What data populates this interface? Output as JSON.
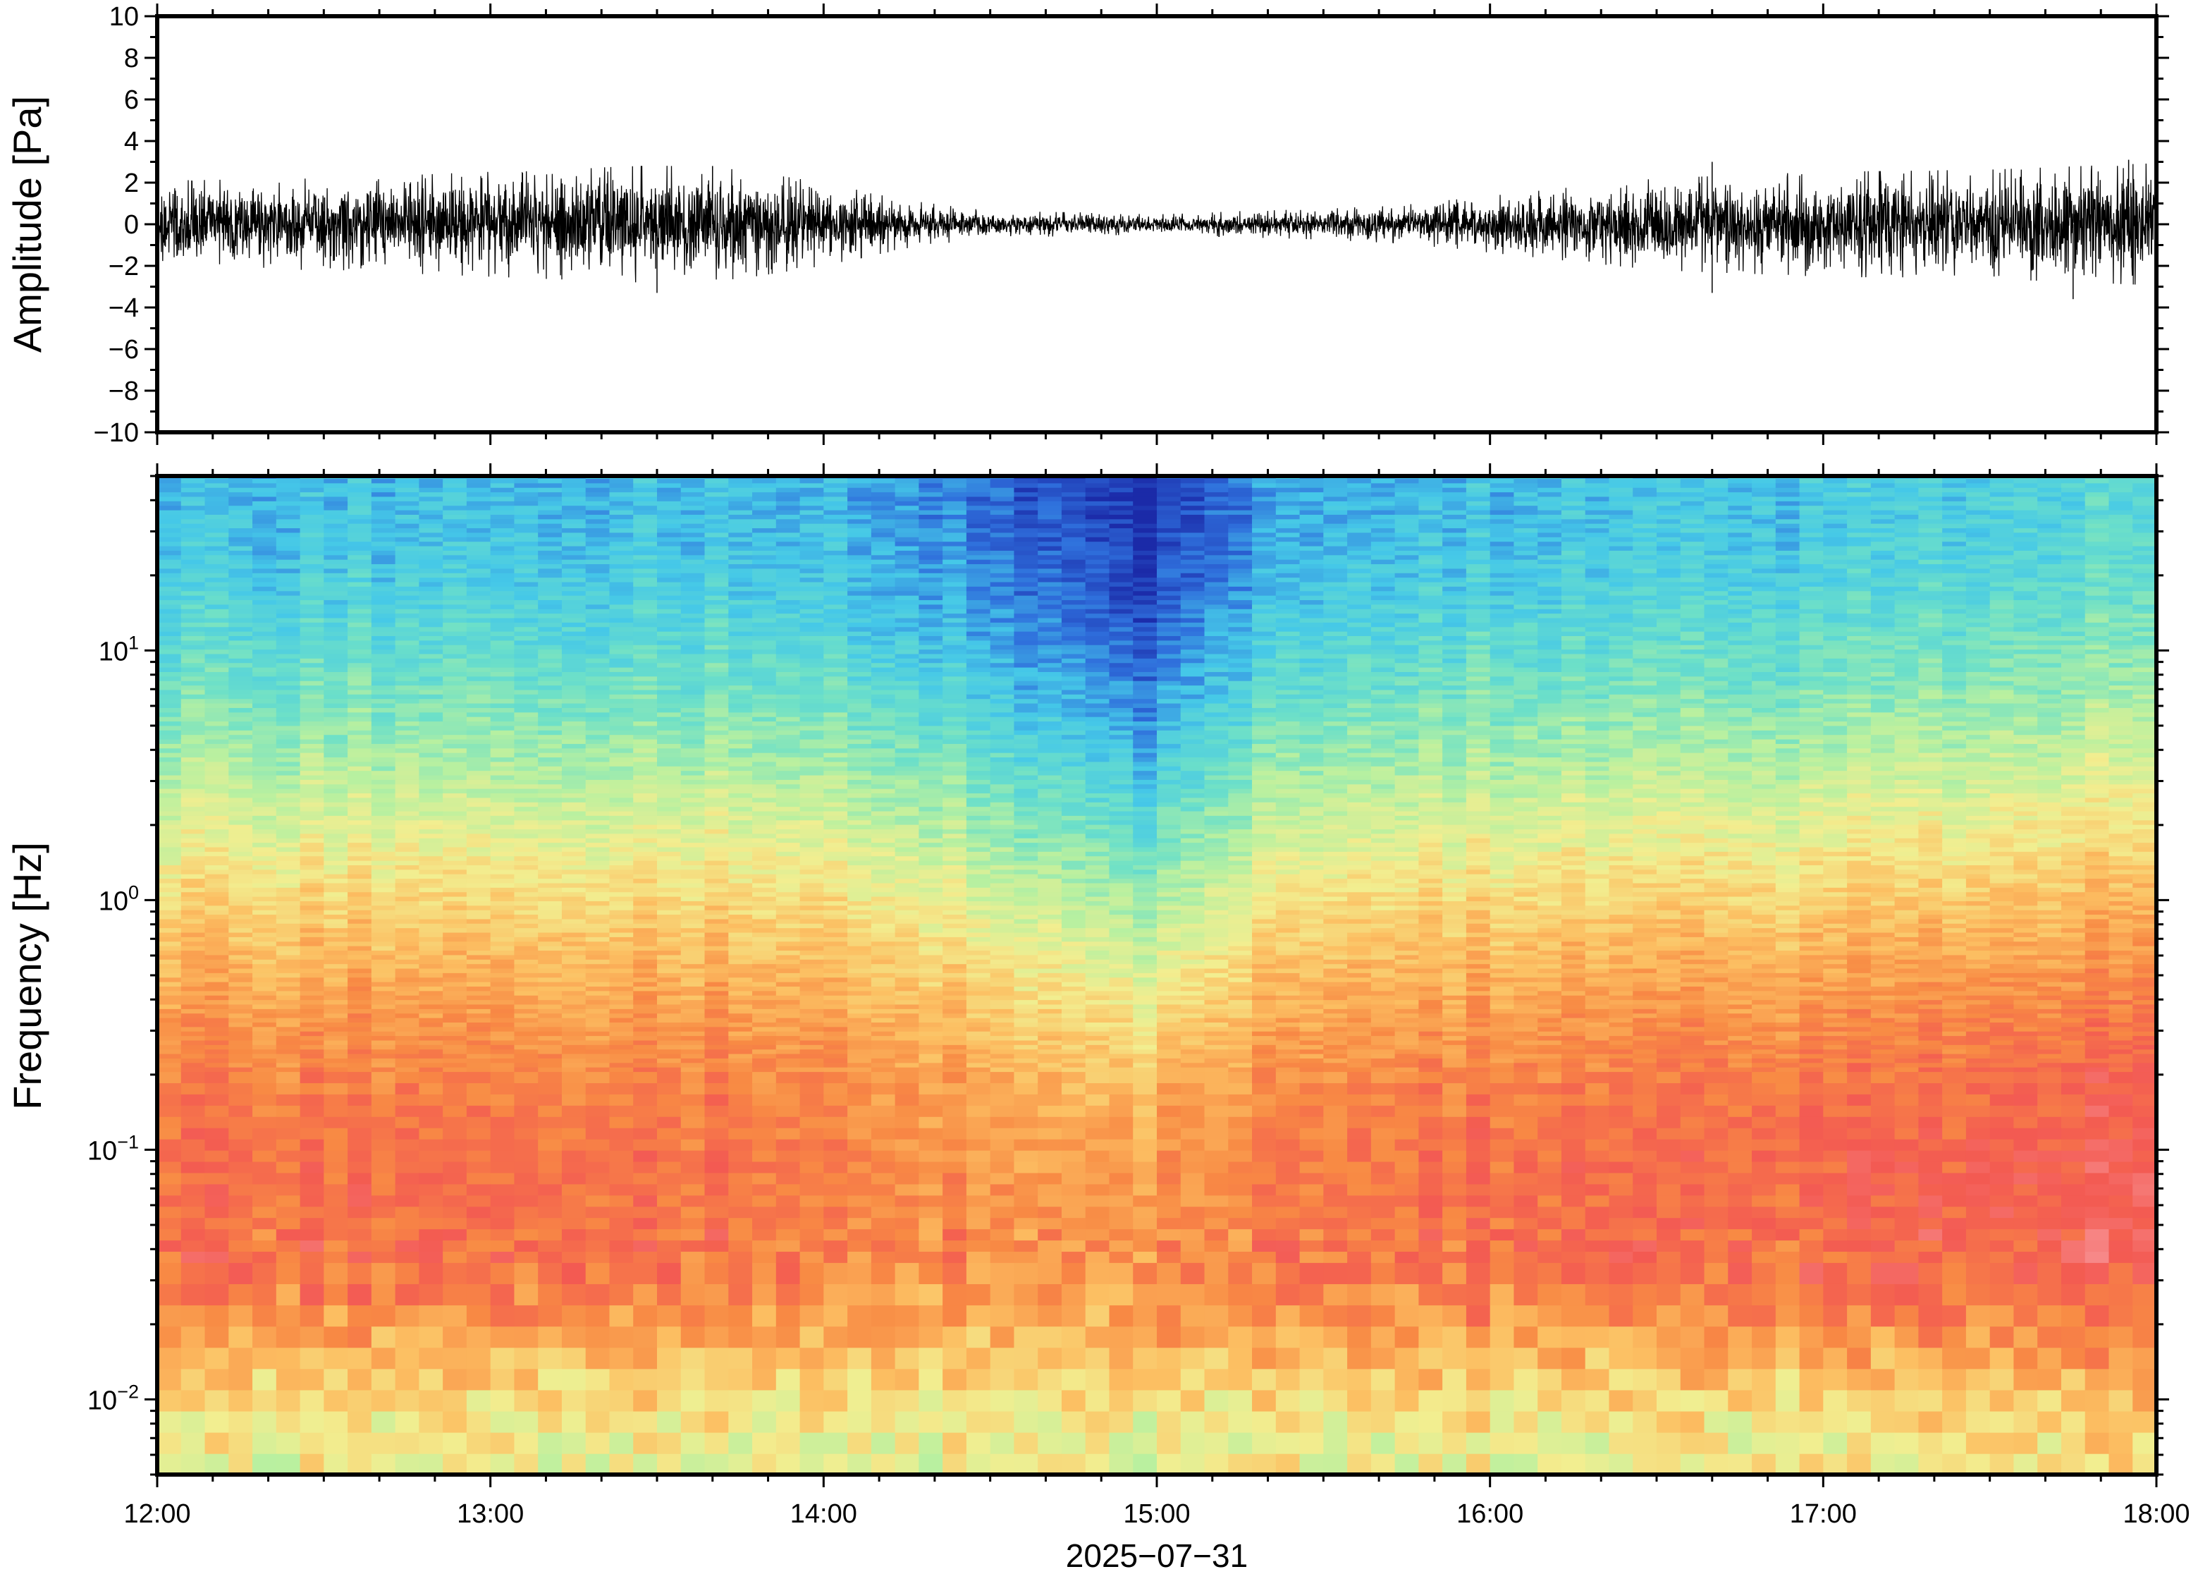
{
  "chart_data": [
    {
      "type": "line",
      "title": "",
      "ylabel": "Amplitude [Pa]",
      "ylim": [
        -10,
        10
      ],
      "yticks": [
        {
          "value": 10,
          "label": "10"
        },
        {
          "value": 8,
          "label": "8"
        },
        {
          "value": 6,
          "label": "6"
        },
        {
          "value": 4,
          "label": "4"
        },
        {
          "value": 2,
          "label": "2"
        },
        {
          "value": 0,
          "label": "0"
        },
        {
          "value": -2,
          "label": "−2"
        },
        {
          "value": -4,
          "label": "−4"
        },
        {
          "value": -6,
          "label": "−6"
        },
        {
          "value": -8,
          "label": "−8"
        },
        {
          "value": -10,
          "label": "−10"
        }
      ],
      "xlim": [
        "12:00",
        "18:00"
      ],
      "envelope": {
        "x": [
          "12:00",
          "12:30",
          "13:00",
          "13:30",
          "13:45",
          "14:00",
          "14:15",
          "14:30",
          "14:45",
          "15:00",
          "15:15",
          "15:30",
          "15:45",
          "16:00",
          "16:30",
          "17:00",
          "17:30",
          "18:00"
        ],
        "amplitude": [
          2.0,
          2.1,
          2.4,
          2.7,
          2.5,
          1.9,
          1.1,
          0.6,
          0.55,
          0.45,
          0.6,
          0.7,
          0.9,
          1.3,
          2.1,
          2.4,
          2.5,
          2.8
        ]
      },
      "peaks": [
        {
          "x": "13:30",
          "y": -3.3
        },
        {
          "x": "13:40",
          "y": 2.8
        },
        {
          "x": "16:40",
          "y": 3.0
        },
        {
          "x": "16:40",
          "y": -3.3
        },
        {
          "x": "17:45",
          "y": -3.6
        },
        {
          "x": "17:55",
          "y": 3.1
        }
      ]
    },
    {
      "type": "heatmap",
      "title": "",
      "ylabel": "Frequency [Hz]",
      "xlabel": "2025−07−31",
      "yscale": "log",
      "ylim": [
        0.005,
        50
      ],
      "yticks": [
        {
          "value": 10,
          "base": "10",
          "exp": "1"
        },
        {
          "value": 1,
          "base": "10",
          "exp": "0"
        },
        {
          "value": 0.1,
          "base": "10",
          "exp": "−1"
        },
        {
          "value": 0.01,
          "base": "10",
          "exp": "−2"
        }
      ],
      "xticks": [
        "12:00",
        "13:00",
        "14:00",
        "15:00",
        "16:00",
        "17:00",
        "18:00"
      ],
      "colormap": [
        "#1b2aa8",
        "#2f6fdc",
        "#45c8e8",
        "#6de0c8",
        "#b8f0a0",
        "#f2ee90",
        "#fcbf62",
        "#f88a44",
        "#f35a52",
        "#f78a8a"
      ],
      "grid": false
    }
  ]
}
